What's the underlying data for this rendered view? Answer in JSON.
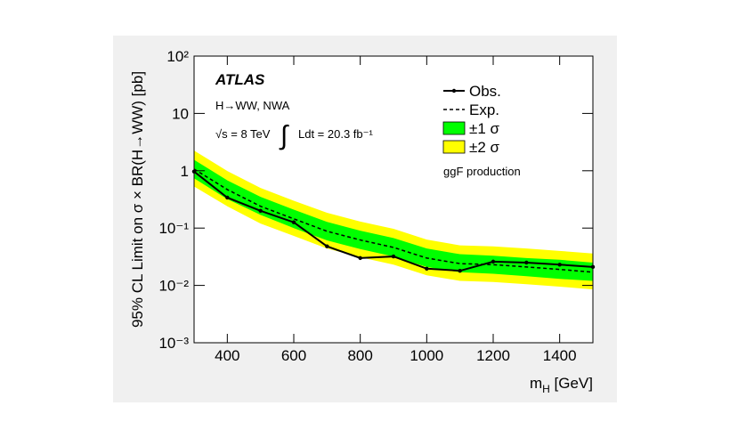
{
  "chart_data": {
    "type": "line",
    "x_label": [
      "m",
      "H",
      " [GeV]"
    ],
    "y_label": "95% CL Limit on σ × BR(H→WW) [pb]",
    "annotations": {
      "atlas": "ATLAS",
      "process": "H→WW, NWA",
      "energy": "√s = 8 TeV",
      "integral": "∫",
      "lumi": "Ldt = 20.3 fb⁻¹",
      "production": "ggF production"
    },
    "x": [
      300,
      400,
      500,
      600,
      700,
      800,
      900,
      1000,
      1100,
      1200,
      1300,
      1400,
      1500
    ],
    "series": [
      {
        "name": "Obs.",
        "color": "#000000",
        "values": [
          0.97,
          0.34,
          0.2,
          0.126,
          0.048,
          0.03,
          0.032,
          0.0196,
          0.018,
          0.026,
          0.025,
          0.023,
          0.021
        ]
      },
      {
        "name": "Exp.",
        "color": "#000000",
        "dash": true,
        "values": [
          1.07,
          0.47,
          0.24,
          0.145,
          0.088,
          0.062,
          0.046,
          0.03,
          0.024,
          0.023,
          0.021,
          0.019,
          0.017
        ]
      },
      {
        "name": "±1 σ",
        "color": "#00ff00",
        "upper": [
          1.55,
          0.68,
          0.35,
          0.21,
          0.128,
          0.09,
          0.067,
          0.044,
          0.035,
          0.033,
          0.03,
          0.028,
          0.025
        ],
        "lower": [
          0.74,
          0.32,
          0.17,
          0.1,
          0.061,
          0.043,
          0.032,
          0.021,
          0.017,
          0.016,
          0.0145,
          0.013,
          0.012
        ]
      },
      {
        "name": "±2 σ",
        "color": "#ffff00",
        "upper": [
          2.25,
          0.99,
          0.5,
          0.3,
          0.185,
          0.13,
          0.097,
          0.063,
          0.05,
          0.048,
          0.044,
          0.04,
          0.036
        ],
        "lower": [
          0.53,
          0.24,
          0.12,
          0.073,
          0.044,
          0.031,
          0.023,
          0.015,
          0.012,
          0.0115,
          0.0105,
          0.0095,
          0.0085
        ]
      }
    ],
    "xlim": [
      300,
      1500
    ],
    "xticks": [
      400,
      600,
      800,
      1000,
      1200,
      1400
    ],
    "ylim": [
      0.001,
      100
    ],
    "yticks": [
      {
        "value": 0.001,
        "label": "10⁻³"
      },
      {
        "value": 0.01,
        "label": "10⁻²"
      },
      {
        "value": 0.1,
        "label": "10⁻¹"
      },
      1,
      10,
      {
        "value": 100,
        "label": "10²"
      }
    ],
    "log_y": true,
    "legend": "top-right"
  }
}
